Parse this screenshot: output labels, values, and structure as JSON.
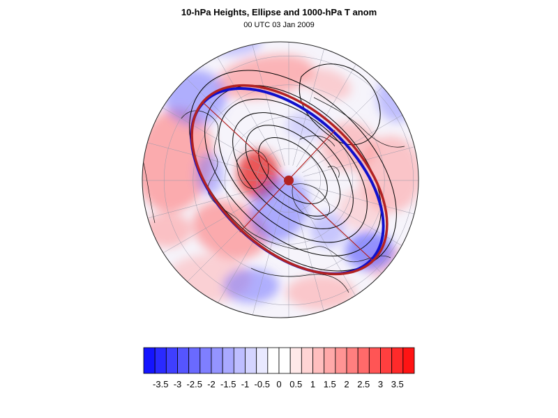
{
  "figure": {
    "title": "10-hPa Heights, Ellipse and 1000-hPa T anom",
    "subtitle": "00 UTC 03 Jan 2009"
  },
  "map": {
    "projection": "north-polar-stereographic",
    "field": "1000-hPa temperature anomaly (shaded)",
    "contours": "10-hPa geopotential heights",
    "ellipse_colors": {
      "outer": "#b22222",
      "inner": "#1010cc",
      "center_dot": "#b22222"
    }
  },
  "colorbar": {
    "colors": [
      "#1414ff",
      "#2a2aff",
      "#3f3fff",
      "#5555ff",
      "#6a6aff",
      "#7f7fff",
      "#9494ff",
      "#a9a9ff",
      "#bebeff",
      "#d4d4ff",
      "#e9e9ff",
      "#ffffff",
      "#ffffff",
      "#ffe9e9",
      "#ffd4d4",
      "#ffbebe",
      "#ffa9a9",
      "#ff9494",
      "#ff7f7f",
      "#ff6a6a",
      "#ff5555",
      "#ff3f3f",
      "#ff2a2a",
      "#ff1414"
    ],
    "labels": [
      "-3.5",
      "-3",
      "-2.5",
      "-2",
      "-1.5",
      "-1",
      "-0.5",
      "0",
      "0.5",
      "1",
      "1.5",
      "2",
      "2.5",
      "3",
      "3.5"
    ]
  }
}
